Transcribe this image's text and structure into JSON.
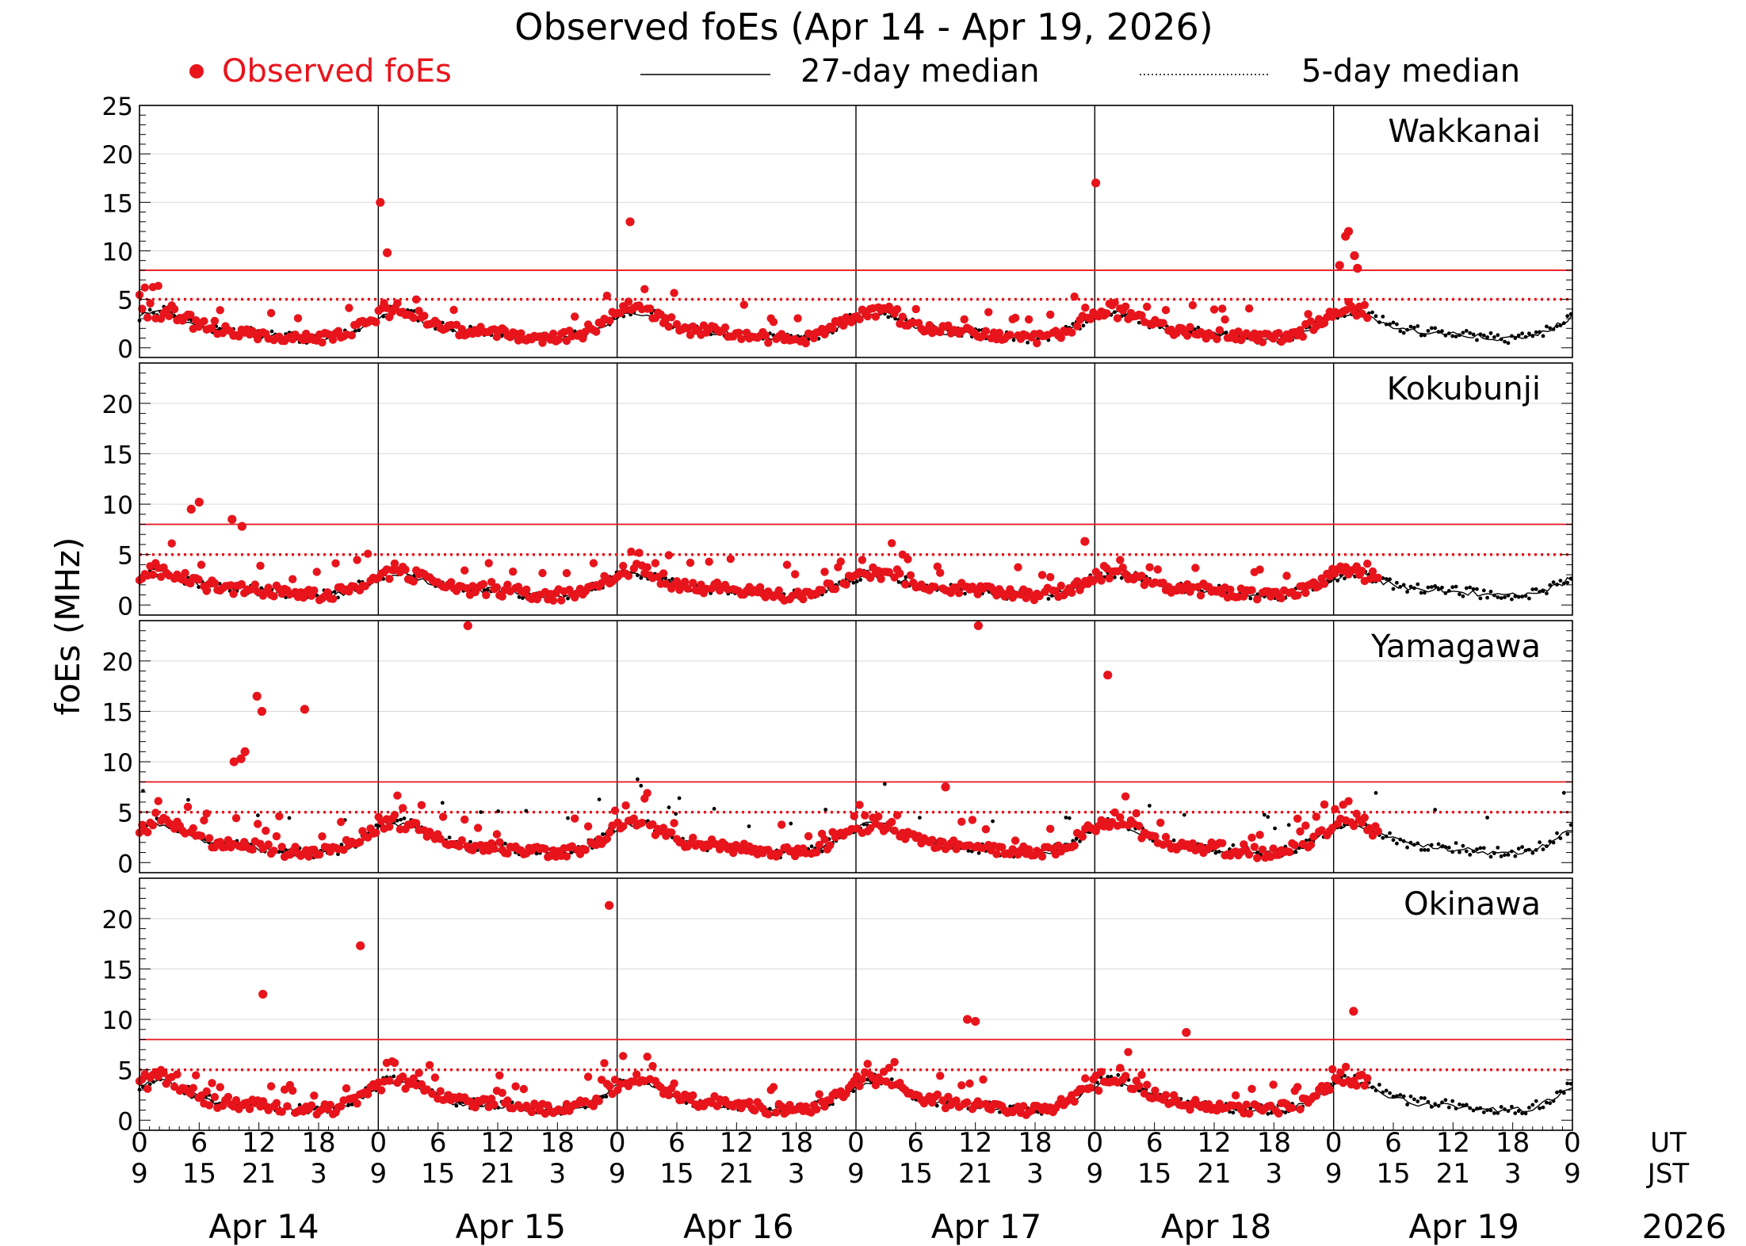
{
  "chart_data": {
    "type": "scatter",
    "title": "Observed foEs (Apr 14 - Apr 19, 2026)",
    "ylabel": "foEs (MHz)",
    "xlabel_ut": "UT",
    "xlabel_jst": "JST",
    "year": "2026",
    "legend": {
      "position": "top",
      "items": [
        {
          "name": "Observed foEs",
          "style": "red-dot"
        },
        {
          "name": "27-day median",
          "style": "solid-line"
        },
        {
          "name": "5-day median",
          "style": "dotted-line"
        }
      ]
    },
    "colors": {
      "observed": "#e8141c",
      "median": "#000000",
      "threshold": "#e8141c",
      "grid": "#d9d9d9"
    },
    "x_range_hours_ut": [
      0,
      144
    ],
    "ut_tick_labels": [
      "0",
      "6",
      "12",
      "18",
      "0",
      "6",
      "12",
      "18",
      "0",
      "6",
      "12",
      "18",
      "0",
      "6",
      "12",
      "18",
      "0",
      "6",
      "12",
      "18",
      "0",
      "6",
      "12",
      "18",
      "0"
    ],
    "jst_tick_labels": [
      "9",
      "15",
      "21",
      "3",
      "9",
      "15",
      "21",
      "3",
      "9",
      "15",
      "21",
      "3",
      "9",
      "15",
      "21",
      "3",
      "9",
      "15",
      "21",
      "3",
      "9",
      "15",
      "21",
      "3",
      "9"
    ],
    "day_labels": [
      {
        "label": "Apr 14",
        "center_hour": 12.5
      },
      {
        "label": "Apr 15",
        "center_hour": 37.3
      },
      {
        "label": "Apr 16",
        "center_hour": 60.2
      },
      {
        "label": "Apr 17",
        "center_hour": 85.1
      },
      {
        "label": "Apr 18",
        "center_hour": 108.2
      },
      {
        "label": "Apr 19",
        "center_hour": 133.1
      }
    ],
    "threshold_solid_mhz": 8,
    "threshold_dotted_mhz": 5,
    "panels": [
      {
        "station": "Wakkanai",
        "ylim": [
          -1,
          25
        ],
        "yticks": [
          "25",
          "20",
          "15",
          "10",
          "5",
          "0"
        ],
        "outliers": [
          [
            24.2,
            15
          ],
          [
            24.9,
            9.8
          ],
          [
            49.3,
            13
          ],
          [
            96.1,
            17
          ],
          [
            120.6,
            8.5
          ],
          [
            121.2,
            11.5
          ],
          [
            121.5,
            12
          ],
          [
            122.1,
            9.5
          ],
          [
            122.4,
            8.2
          ]
        ],
        "observed_cutoff_hour": 123.5
      },
      {
        "station": "Kokubunji",
        "ylim": [
          -1,
          24
        ],
        "yticks": [
          "20",
          "15",
          "10",
          "5",
          "0"
        ],
        "outliers": [
          [
            5.2,
            9.5
          ],
          [
            6.0,
            10.2
          ],
          [
            9.3,
            8.5
          ],
          [
            10.3,
            7.8
          ],
          [
            95.0,
            6.3
          ]
        ],
        "observed_cutoff_hour": 124.5
      },
      {
        "station": "Yamagawa",
        "ylim": [
          -1,
          24
        ],
        "yticks": [
          "20",
          "15",
          "10",
          "5",
          "0"
        ],
        "outliers": [
          [
            11.8,
            16.5
          ],
          [
            12.3,
            15
          ],
          [
            16.6,
            15.2
          ],
          [
            10.6,
            11
          ],
          [
            9.5,
            10
          ],
          [
            10.2,
            10.3
          ],
          [
            33.0,
            23.5
          ],
          [
            84.3,
            23.5
          ],
          [
            97.3,
            18.6
          ],
          [
            81.0,
            7.5
          ]
        ],
        "observed_cutoff_hour": 124.5
      },
      {
        "station": "Okinawa",
        "ylim": [
          -1,
          24
        ],
        "yticks": [
          "20",
          "15",
          "10",
          "5",
          "0"
        ],
        "outliers": [
          [
            22.2,
            17.3
          ],
          [
            47.2,
            21.3
          ],
          [
            12.4,
            12.5
          ],
          [
            122.0,
            10.8
          ],
          [
            83.2,
            10
          ],
          [
            84.0,
            9.8
          ],
          [
            105.2,
            8.7
          ]
        ],
        "observed_cutoff_hour": 123.5
      }
    ]
  }
}
